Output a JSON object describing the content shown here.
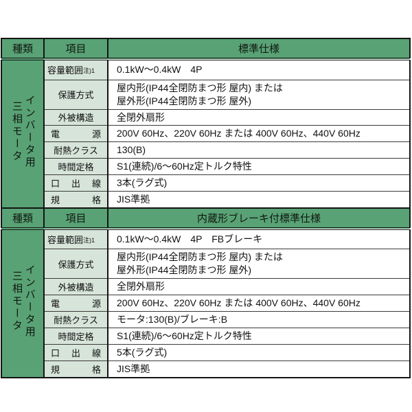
{
  "colors": {
    "header_green": "#59a275",
    "label_green": "#d7e4da",
    "border_dark": "#141414",
    "text": "#111111"
  },
  "table1": {
    "headers": {
      "kind": "種類",
      "item": "項目",
      "spec": "標準仕様"
    },
    "kind_vertical": "インバータ用\n三相モータ",
    "rows": [
      {
        "label": "容量範囲",
        "note": "注)1",
        "value": "0.1kW〜0.4kW　4P"
      },
      {
        "label": "保護方式",
        "value": "屋内形(IP44全閉防まつ形 屋内) または\n屋外形(IP44全閉防まつ形 屋外)"
      },
      {
        "label": "外被構造",
        "value": "全閉外扇形"
      },
      {
        "label": "電源",
        "value": "200V 60Hz、220V 60Hz または 400V 60Hz、440V 60Hz"
      },
      {
        "label": "耐熱クラス",
        "value": "130(B)"
      },
      {
        "label": "時間定格",
        "value": "S1(連続)/6〜60Hz定トルク特性"
      },
      {
        "label": "口出線",
        "value": "3本(ラグ式)"
      },
      {
        "label": "規格",
        "value": "JIS準拠"
      }
    ]
  },
  "table2": {
    "headers": {
      "kind": "種類",
      "item": "項目",
      "spec": "内蔵形ブレーキ付標準仕様"
    },
    "kind_vertical": "インバータ用\n三相モータ",
    "rows": [
      {
        "label": "容量範囲",
        "note": "注)1",
        "value": "0.1kW〜0.4kW　4P　FBブレーキ"
      },
      {
        "label": "保護方式",
        "value": "屋内形(IP44全閉防まつ形 屋内) または\n屋外形(IP44全閉防まつ形 屋外)"
      },
      {
        "label": "外被構造",
        "value": "全閉外扇形"
      },
      {
        "label": "電源",
        "value": "200V 60Hz、220V 60Hz または 400V 60Hz、440V 60Hz"
      },
      {
        "label": "耐熱クラス",
        "value": "モータ:130(B)/ブレーキ:B"
      },
      {
        "label": "時間定格",
        "value": "S1(連続)/6〜60Hz定トルク特性"
      },
      {
        "label": "口出線",
        "value": "5本(ラグ式)"
      },
      {
        "label": "規格",
        "value": "JIS準拠"
      }
    ]
  }
}
